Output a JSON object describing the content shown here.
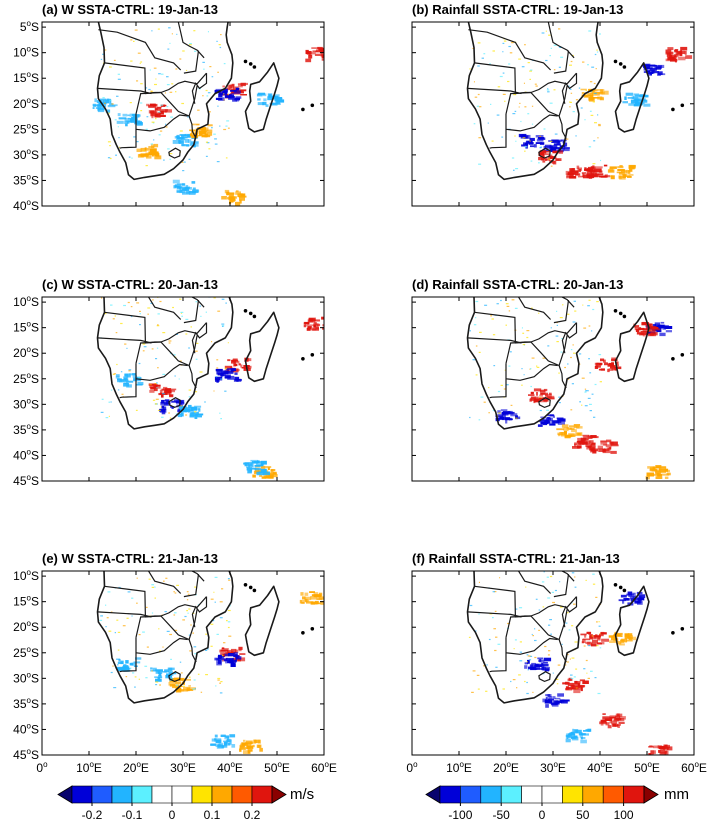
{
  "chart_data": [
    {
      "id": "a",
      "type": "heatmap",
      "variable": "W",
      "title": "(a) W SSTA-CTRL: 19-Jan-13",
      "yticks": [
        -5,
        -10,
        -15,
        -20,
        -25,
        -30,
        -35,
        -40
      ],
      "ylim": [
        -40,
        -4
      ],
      "xlim": [
        0,
        60
      ],
      "xtick_labels_shown": false,
      "anomalies": [
        {
          "lon": 40,
          "lat": -17,
          "value": 0.2
        },
        {
          "lon": 39,
          "lat": -18,
          "value": -0.2
        },
        {
          "lon": 24,
          "lat": -21,
          "value": 0.2
        },
        {
          "lon": 30,
          "lat": -27,
          "value": -0.1
        },
        {
          "lon": 18,
          "lat": -23,
          "value": -0.1
        },
        {
          "lon": 33,
          "lat": -25,
          "value": 0.1
        },
        {
          "lon": 58,
          "lat": -10,
          "value": 0.2
        },
        {
          "lon": 40,
          "lat": -38,
          "value": 0.1
        },
        {
          "lon": 30,
          "lat": -36,
          "value": -0.1
        },
        {
          "lon": 13,
          "lat": -20,
          "value": -0.1
        },
        {
          "lon": 48,
          "lat": -19,
          "value": -0.1
        },
        {
          "lon": 22,
          "lat": -29,
          "value": 0.1
        }
      ]
    },
    {
      "id": "b",
      "type": "heatmap",
      "variable": "Rainfall",
      "title": "(b) Rainfall SSTA-CTRL: 19-Jan-13",
      "ylim": [
        -40,
        -4
      ],
      "xlim": [
        0,
        60
      ],
      "xtick_labels_shown": false,
      "anomalies": [
        {
          "lon": 30,
          "lat": -28,
          "value": -100
        },
        {
          "lon": 29,
          "lat": -30,
          "value": 100
        },
        {
          "lon": 35,
          "lat": -33,
          "value": 100
        },
        {
          "lon": 39,
          "lat": -33,
          "value": 100
        },
        {
          "lon": 25,
          "lat": -27,
          "value": -100
        },
        {
          "lon": 56,
          "lat": -10,
          "value": 100
        },
        {
          "lon": 51,
          "lat": -13,
          "value": -100
        },
        {
          "lon": 38,
          "lat": -18,
          "value": 50
        },
        {
          "lon": 44,
          "lat": -33,
          "value": 50
        },
        {
          "lon": 47,
          "lat": -19,
          "value": -50
        }
      ]
    },
    {
      "id": "c",
      "type": "heatmap",
      "variable": "W",
      "title": "(c) W SSTA-CTRL: 20-Jan-13",
      "yticks": [
        -10,
        -15,
        -20,
        -25,
        -30,
        -35,
        -40,
        -45
      ],
      "ylim": [
        -45,
        -9
      ],
      "xlim": [
        0,
        60
      ],
      "xtick_labels_shown": false,
      "anomalies": [
        {
          "lon": 41,
          "lat": -22,
          "value": 0.2
        },
        {
          "lon": 39,
          "lat": -24,
          "value": -0.2
        },
        {
          "lon": 25,
          "lat": -27,
          "value": 0.2
        },
        {
          "lon": 27,
          "lat": -30,
          "value": -0.2
        },
        {
          "lon": 31,
          "lat": -31,
          "value": -0.1
        },
        {
          "lon": 58,
          "lat": -14,
          "value": 0.2
        },
        {
          "lon": 47,
          "lat": -43,
          "value": 0.1
        },
        {
          "lon": 18,
          "lat": -25,
          "value": -0.1
        },
        {
          "lon": 45,
          "lat": -42,
          "value": -0.1
        }
      ]
    },
    {
      "id": "d",
      "type": "heatmap",
      "variable": "Rainfall",
      "title": "(d) Rainfall SSTA-CTRL: 20-Jan-13",
      "ylim": [
        -45,
        -9
      ],
      "xlim": [
        0,
        60
      ],
      "xtick_labels_shown": false,
      "anomalies": [
        {
          "lon": 29,
          "lat": -33,
          "value": -100
        },
        {
          "lon": 27,
          "lat": -28,
          "value": 100
        },
        {
          "lon": 36,
          "lat": -37,
          "value": 100
        },
        {
          "lon": 40,
          "lat": -38,
          "value": 100
        },
        {
          "lon": 41,
          "lat": -22,
          "value": 100
        },
        {
          "lon": 52,
          "lat": -15,
          "value": -100
        },
        {
          "lon": 49,
          "lat": -15,
          "value": 100
        },
        {
          "lon": 52,
          "lat": -43,
          "value": 50
        },
        {
          "lon": 33,
          "lat": -35,
          "value": 50
        },
        {
          "lon": 20,
          "lat": -32,
          "value": -100
        }
      ]
    },
    {
      "id": "e",
      "type": "heatmap",
      "variable": "W",
      "title": "(e) W SSTA-CTRL: 21-Jan-13",
      "yticks": [
        -10,
        -15,
        -20,
        -25,
        -30,
        -35,
        -40,
        -45
      ],
      "xticks": [
        0,
        10,
        20,
        30,
        40,
        50,
        60
      ],
      "ylim": [
        -45,
        -9
      ],
      "xlim": [
        0,
        60
      ],
      "xtick_labels_shown": true,
      "anomalies": [
        {
          "lon": 40,
          "lat": -25,
          "value": 0.2
        },
        {
          "lon": 39,
          "lat": -26,
          "value": -0.2
        },
        {
          "lon": 29,
          "lat": -31,
          "value": 0.1
        },
        {
          "lon": 25,
          "lat": -29,
          "value": -0.1
        },
        {
          "lon": 57,
          "lat": -14,
          "value": 0.1
        },
        {
          "lon": 38,
          "lat": -42,
          "value": -0.1
        },
        {
          "lon": 44,
          "lat": -43,
          "value": 0.1
        },
        {
          "lon": 18,
          "lat": -27,
          "value": -0.1
        }
      ]
    },
    {
      "id": "f",
      "type": "heatmap",
      "variable": "Rainfall",
      "title": "(f) Rainfall SSTA-CTRL: 21-Jan-13",
      "xticks": [
        0,
        10,
        20,
        30,
        40,
        50,
        60
      ],
      "ylim": [
        -45,
        -9
      ],
      "xlim": [
        0,
        60
      ],
      "xtick_labels_shown": true,
      "anomalies": [
        {
          "lon": 30,
          "lat": -34,
          "value": -100
        },
        {
          "lon": 34,
          "lat": -31,
          "value": 100
        },
        {
          "lon": 38,
          "lat": -22,
          "value": 100
        },
        {
          "lon": 42,
          "lat": -38,
          "value": 100
        },
        {
          "lon": 52,
          "lat": -44,
          "value": 100
        },
        {
          "lon": 46,
          "lat": -14,
          "value": -100
        },
        {
          "lon": 35,
          "lat": -41,
          "value": -50
        },
        {
          "lon": 26,
          "lat": -27,
          "value": -100
        },
        {
          "lon": 44,
          "lat": -22,
          "value": 50
        }
      ]
    }
  ],
  "colorbars": [
    {
      "id": "w",
      "unit": "m/s",
      "tick_labels": [
        "-0.2",
        "-0.1",
        "0",
        "0.1",
        "0.2"
      ],
      "tick_values": [
        -0.2,
        -0.1,
        0,
        0.1,
        0.2
      ],
      "range": [
        -0.25,
        0.25
      ],
      "colors": [
        "#08036e",
        "#0000d8",
        "#1f5cff",
        "#22b4ff",
        "#5cf0ff",
        "#ffffff",
        "#ffffff",
        "#ffe400",
        "#ffa800",
        "#ff5a00",
        "#e0150e",
        "#8a0000"
      ]
    },
    {
      "id": "rain",
      "unit": "mm",
      "tick_labels": [
        "-100",
        "-50",
        "0",
        "50",
        "100"
      ],
      "tick_values": [
        -100,
        -50,
        0,
        50,
        100
      ],
      "range": [
        -125,
        125
      ],
      "colors": [
        "#08036e",
        "#0000d8",
        "#1f5cff",
        "#22b4ff",
        "#5cf0ff",
        "#ffffff",
        "#ffffff",
        "#ffe400",
        "#ffa800",
        "#ff5a00",
        "#e0150e",
        "#8a0000"
      ]
    }
  ]
}
